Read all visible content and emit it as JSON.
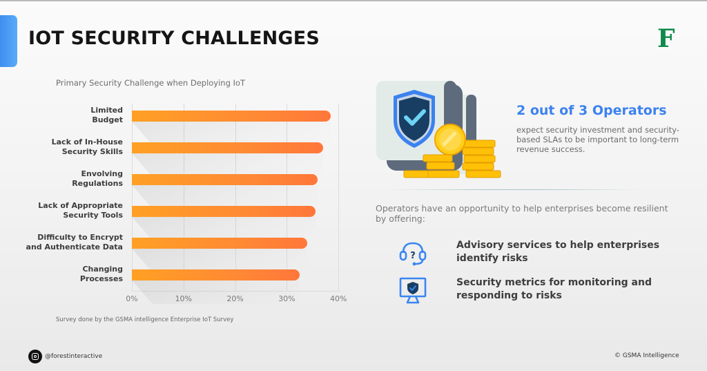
{
  "header": {
    "title": "IOT SECURITY CHALLENGES",
    "logo_letter": "F",
    "accent_color": "#4a9af4",
    "logo_color": "#0d8a4a"
  },
  "chart_data": {
    "type": "bar",
    "orientation": "horizontal",
    "title": "Primary Security Challenge when Deploying IoT",
    "xlabel": "",
    "ylabel": "",
    "categories": [
      "Limited Budget",
      "Lack of In-House Security Skills",
      "Envolving Regulations",
      "Lack of Appropriate Security Tools",
      "Difficulty to Encrypt and Authenticate Data",
      "Changing Processes"
    ],
    "category_lines": [
      [
        "Limited",
        "Budget"
      ],
      [
        "Lack of In-House",
        "Security Skills"
      ],
      [
        "Envolving",
        "Regulations"
      ],
      [
        "Lack of Appropriate",
        "Security Tools"
      ],
      [
        "Difficulty to Encrypt",
        "and Authenticate Data"
      ],
      [
        "Changing",
        "Processes"
      ]
    ],
    "values": [
      38.5,
      37,
      36,
      35.5,
      34,
      32.5
    ],
    "unit": "%",
    "xlim": [
      0,
      40
    ],
    "ticks": [
      "0%",
      "10%",
      "20%",
      "30%",
      "40%"
    ],
    "grid": true,
    "bar_color_start": "#ffa024",
    "bar_color_end": "#ff773a",
    "note": "Survey done by the GSMA intelligence Enterprise IoT Survey"
  },
  "stat": {
    "headline": "2 out of 3 Operators",
    "body": "expect security investment and security-based SLAs to be important to long-term revenue success.",
    "illustration": "shield-with-coins",
    "headline_color": "#3c82ef"
  },
  "offer": {
    "intro": "Operators have an opportunity to help enterprises become resilient by offering:",
    "items": [
      {
        "icon": "headset-question-icon",
        "text": "Advisory services to help enterprises identify risks"
      },
      {
        "icon": "monitor-shield-icon",
        "text": "Security metrics for monitoring and responding to risks"
      }
    ],
    "icon_color": "#3a86f0"
  },
  "footer": {
    "social_icon": "instagram-icon",
    "social_handle": "@forestinteractive",
    "copyright": "© GSMA Intelligence"
  }
}
